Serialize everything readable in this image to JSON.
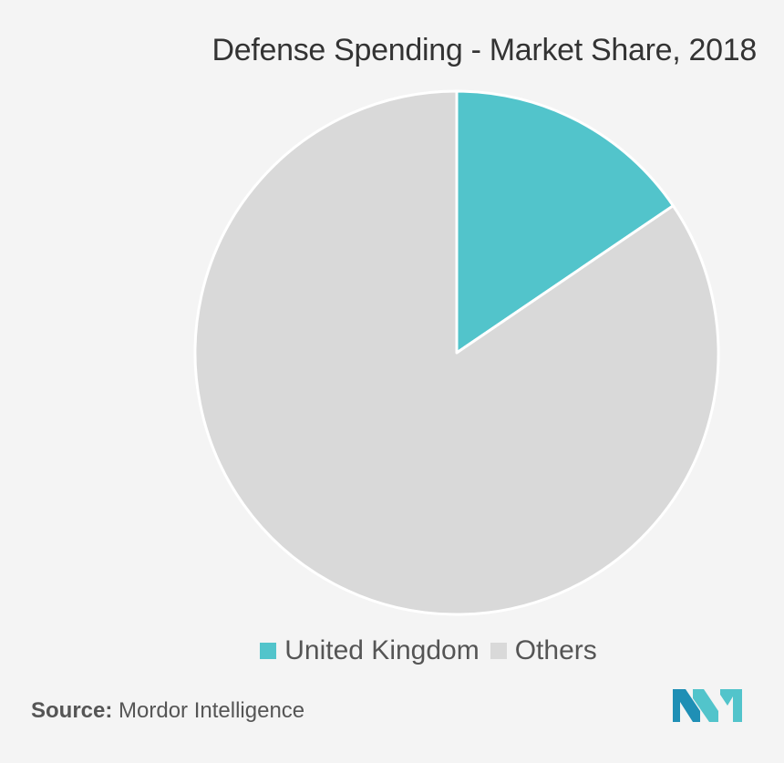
{
  "chart_data": {
    "type": "pie",
    "title": "Defense Spending - Market Share, 2018",
    "categories": [
      "United Kingdom",
      "Others"
    ],
    "values": [
      15.5,
      84.5
    ],
    "unit": "%",
    "colors": [
      "#52c4cb",
      "#d9d9d9"
    ],
    "legend_position": "bottom",
    "start_angle_deg": 0,
    "direction": "clockwise"
  },
  "source": {
    "label": "Source:",
    "text": "Mordor Intelligence"
  },
  "logo": {
    "icon": "mordor-intelligence-logo",
    "colors": [
      "#1f8fb5",
      "#52c4cb"
    ]
  }
}
